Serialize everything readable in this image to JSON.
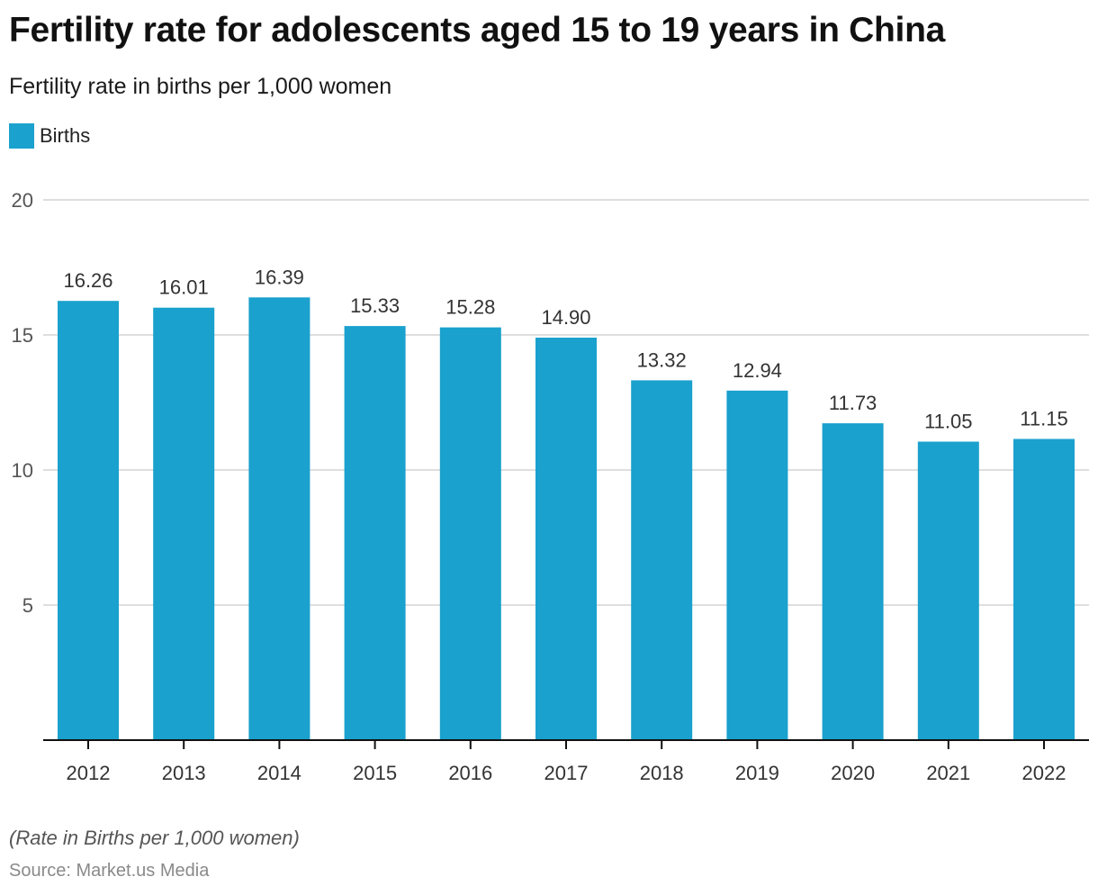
{
  "header": {
    "title": "Fertility rate for adolescents aged 15 to 19 years in China",
    "subtitle": "Fertility rate in births per 1,000 women"
  },
  "footer": {
    "note": "(Rate in Births per 1,000 women)",
    "source": "Source: Market.us Media"
  },
  "colors": {
    "bar": "#1aa1cd",
    "grid": "#d4d4d4",
    "axis": "#111111"
  },
  "chart_data": {
    "type": "bar",
    "title": "Fertility rate for adolescents aged 15 to 19 years in China",
    "subtitle": "Fertility rate in births per 1,000 women",
    "xlabel": "",
    "ylabel": "",
    "categories": [
      "2012",
      "2013",
      "2014",
      "2015",
      "2016",
      "2017",
      "2018",
      "2019",
      "2020",
      "2021",
      "2022"
    ],
    "series": [
      {
        "name": "Births",
        "values": [
          16.26,
          16.01,
          16.39,
          15.33,
          15.28,
          14.9,
          13.32,
          12.94,
          11.73,
          11.05,
          11.15
        ],
        "labels": [
          "16.26",
          "16.01",
          "16.39",
          "15.33",
          "15.28",
          "14.90",
          "13.32",
          "12.94",
          "11.73",
          "11.05",
          "11.15"
        ]
      }
    ],
    "ylim": [
      0,
      20
    ],
    "yticks": [
      5,
      10,
      15,
      20
    ],
    "grid": true,
    "legend": {
      "position": "top-left",
      "entries": [
        "Births"
      ]
    }
  }
}
